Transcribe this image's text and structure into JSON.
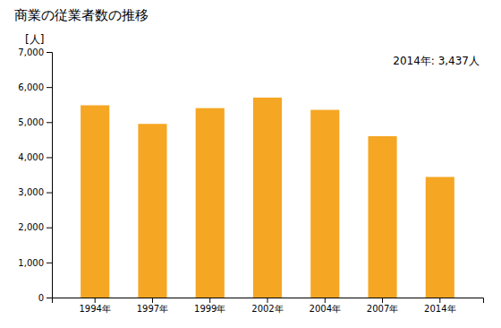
{
  "chart_data": {
    "type": "bar",
    "title": "商業の従業者数の推移",
    "ylabel": "[人]",
    "annotation": "2014年: 3,437人",
    "categories": [
      "1994年",
      "1997年",
      "1999年",
      "2002年",
      "2004年",
      "2007年",
      "2014年"
    ],
    "values": [
      5480,
      4950,
      5400,
      5700,
      5350,
      4600,
      3437
    ],
    "color": "#F5A623",
    "ylim": [
      0,
      7000
    ],
    "yticks": [
      0,
      {
        "value": 1000,
        "label": "1,000"
      },
      {
        "value": 2000,
        "label": "2,000"
      },
      {
        "value": 3000,
        "label": "3,000"
      },
      {
        "value": 4000,
        "label": "4,000"
      },
      {
        "value": 5000,
        "label": "5,000"
      },
      {
        "value": 6000,
        "label": "6,000"
      },
      {
        "value": 7000,
        "label": "7,000"
      }
    ],
    "grid": false
  }
}
